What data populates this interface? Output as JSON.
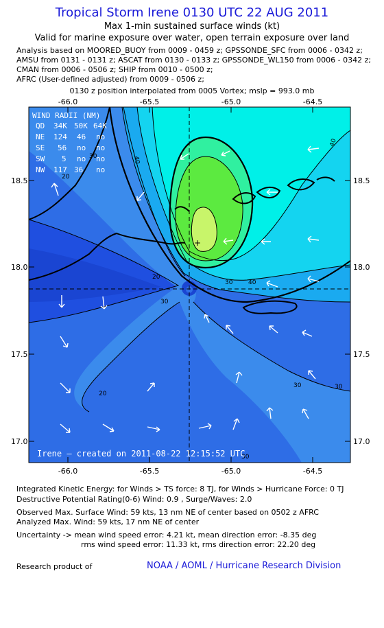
{
  "header": {
    "title": "Tropical Storm Irene 0130 UTC 22 AUG 2011",
    "subtitle1": "Max 1-min sustained surface winds (kt)",
    "subtitle2": "Valid for marine exposure over water, open terrain exposure over land"
  },
  "analysis_lines": [
    "Analysis based on MOORED_BUOY from 0009 - 0459 z; GPSSONDE_SFC from 0006 - 0342 z;",
    "AMSU from 0131 - 0131 z; ASCAT from 0130 - 0133 z; GPSSONDE_WL150 from 0006 - 0342 z;",
    "CMAN from 0006 - 0506 z; SHIP from 0010 - 0500 z;",
    "AFRC (User-defined adjusted) from 0009 - 0506 z;"
  ],
  "position_note": "0130 z position interpolated from 0005 Vortex; mslp = 993.0 mb",
  "map": {
    "lon_ticks": [
      "-66.0",
      "-65.5",
      "-65.0",
      "-64.5"
    ],
    "lat_ticks": [
      "18.5",
      "18.0",
      "17.5",
      "17.0"
    ],
    "contour_labels": [
      "20",
      "30",
      "40",
      "30",
      "40",
      "20",
      "20",
      "30",
      "30",
      "30",
      "30",
      "40"
    ],
    "credit": "Irene — created on 2011-08-22 12:15:52 UTC",
    "wind_radii": {
      "title": "WIND RADII (NM)",
      "header": [
        "QD",
        "34K",
        "50K",
        "64K"
      ],
      "rows": [
        [
          "NE",
          "124",
          "46",
          "no"
        ],
        [
          "SE",
          "56",
          "no",
          "no"
        ],
        [
          "SW",
          "5",
          "no",
          "no"
        ],
        [
          "NW",
          "117",
          "36",
          "no"
        ]
      ]
    },
    "colors": {
      "c1": "#1f4fe0",
      "c2": "#2e6de6",
      "c3": "#3b8bec",
      "c4": "#1aaaf0",
      "c5": "#14d4f0",
      "c6": "#00f0e8",
      "c7": "#30f0a0",
      "c8": "#5cea40",
      "c9": "#c8f56a"
    }
  },
  "footer": {
    "ike": "Integrated Kinetic Energy:  for Winds > TS force: 8 TJ,  for Winds > Hurricane Force: 0 TJ",
    "dpr": "Destructive Potential Rating(0-6)   Wind: 0.9 , Surge/Waves: 2.0",
    "obs": "Observed Max. Surface Wind: 59 kts, 13 nm NE of center based on 0502 z AFRC",
    "ana": "Analyzed Max. Wind: 59 kts, 17 nm NE of center",
    "unc1": "Uncertainty -> mean wind speed error: 4.21 kt,   mean direction error:  -8.35 deg",
    "unc2": "rms wind speed error: 11.33 kt,   rms direction error: 22.20 deg",
    "research": "Research product of",
    "org": "NOAA / AOML / Hurricane Research Division"
  }
}
